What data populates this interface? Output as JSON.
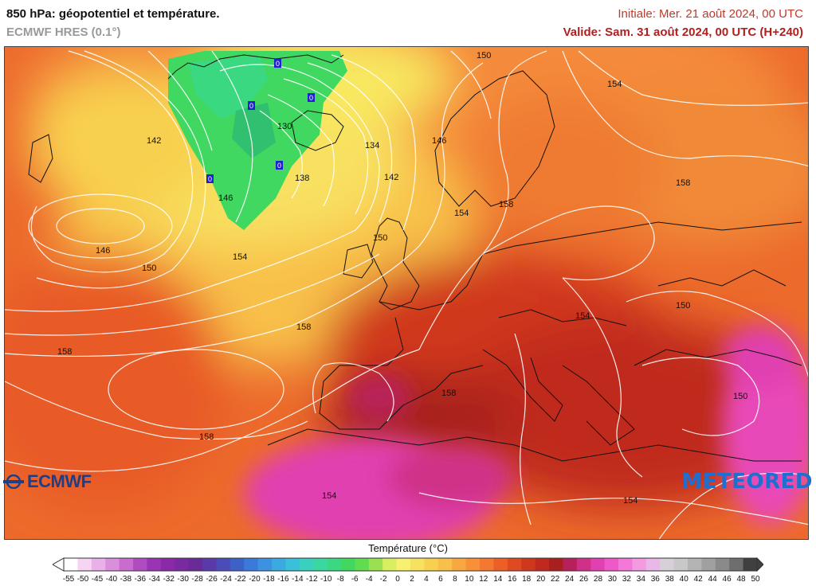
{
  "header": {
    "title": "850 hPa: géopotentiel et température.",
    "model": "ECMWF HRES (0.1°)",
    "initial": "Initiale: Mer. 21 août 2024, 00 UTC",
    "valid": "Valide: Sam. 31 août 2024, 00 UTC (H+240)"
  },
  "map": {
    "contour_labels": [
      "150",
      "154",
      "142",
      "146",
      "134",
      "130",
      "138",
      "142",
      "146",
      "150",
      "154",
      "158",
      "146",
      "150",
      "154",
      "158",
      "158",
      "158",
      "158",
      "154",
      "150",
      "154",
      "150",
      "154",
      "158"
    ],
    "low_temp_markers": [
      "0",
      "0",
      "0",
      "0",
      "0"
    ]
  },
  "logos": {
    "left": "ECMWF",
    "right": "METEORED"
  },
  "legend": {
    "title": "Température (°C)",
    "ticks": [
      "-55",
      "-50",
      "-45",
      "-40",
      "-38",
      "-36",
      "-34",
      "-32",
      "-30",
      "-28",
      "-26",
      "-24",
      "-22",
      "-20",
      "-18",
      "-16",
      "-14",
      "-12",
      "-10",
      "-8",
      "-6",
      "-4",
      "-2",
      "0",
      "2",
      "4",
      "6",
      "8",
      "10",
      "12",
      "14",
      "16",
      "18",
      "20",
      "22",
      "24",
      "26",
      "28",
      "30",
      "32",
      "34",
      "36",
      "38",
      "40",
      "42",
      "44",
      "46",
      "48",
      "50"
    ],
    "colors": [
      "#ffffff",
      "#f6d4f4",
      "#eab0ea",
      "#da8fdc",
      "#c86cd0",
      "#b04cc0",
      "#9a34b4",
      "#8a2aa8",
      "#7a2aa0",
      "#6a2a98",
      "#5a3aa8",
      "#4a4cb8",
      "#3c62c8",
      "#3a7ad8",
      "#3a92e0",
      "#3aaae0",
      "#3ac0d8",
      "#3ad0c0",
      "#3ad8a0",
      "#3ad880",
      "#40d860",
      "#60dc50",
      "#9ae050",
      "#d8f060",
      "#f8f070",
      "#f8e060",
      "#f8d050",
      "#f8c048",
      "#f8a840",
      "#f89038",
      "#f47830",
      "#ec6028",
      "#e04a22",
      "#d0381e",
      "#c02a1e",
      "#a8201e",
      "#b8205a",
      "#d03088",
      "#e040b0",
      "#ee58c8",
      "#f478d8",
      "#f49ae0",
      "#e8b8e8",
      "#d8d0d8",
      "#c8c8c8",
      "#b4b4b4",
      "#a0a0a0",
      "#8a8a8a",
      "#6e6e6e",
      "#404040"
    ]
  }
}
